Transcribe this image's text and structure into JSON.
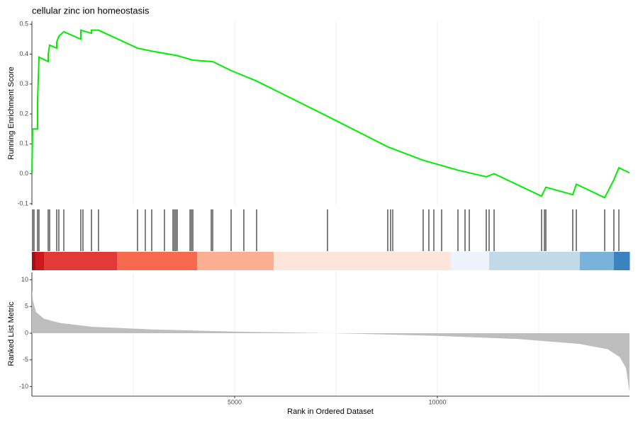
{
  "chart_data": [
    {
      "type": "line",
      "title": "cellular zinc ion homeostasis",
      "ylabel": "Running Enrichment Score",
      "color": "#00ee00",
      "x": [
        0,
        17,
        140,
        140,
        175,
        402,
        402,
        437,
        612,
        612,
        664,
        787,
        1206,
        1206,
        1469,
        1469,
        1643,
        2605,
        2955,
        3584,
        3969,
        4458,
        4913,
        5542,
        7290,
        8776,
        9650,
        9913,
        10507,
        11206,
        11399,
        12570,
        12675,
        13339,
        13427,
        14126,
        14353,
        14476,
        14738
      ],
      "values": [
        0.0,
        0.15,
        0.15,
        0.245,
        0.39,
        0.375,
        0.4,
        0.43,
        0.42,
        0.44,
        0.46,
        0.475,
        0.45,
        0.48,
        0.47,
        0.48,
        0.48,
        0.42,
        0.41,
        0.395,
        0.38,
        0.375,
        0.345,
        0.31,
        0.192,
        0.09,
        0.045,
        0.035,
        0.012,
        -0.01,
        0.0,
        -0.075,
        -0.045,
        -0.07,
        -0.035,
        -0.08,
        -0.02,
        0.02,
        0.003
      ],
      "xlim": [
        0,
        14738
      ],
      "ylim": [
        -0.105,
        0.51
      ],
      "yticks": [
        0.5,
        0.4,
        0.3,
        0.2,
        0.1,
        {
          "value": 0,
          "label": "0.0"
        },
        -0.1
      ],
      "xgrid": [
        2500,
        5000,
        7500,
        10000,
        12500
      ]
    },
    {
      "type": "rug",
      "xlim": [
        0,
        14738
      ],
      "hits": [
        17,
        52,
        140,
        175,
        402,
        437,
        612,
        664,
        787,
        1206,
        1259,
        1469,
        1643,
        2605,
        2797,
        2955,
        3269,
        3479,
        3514,
        3549,
        3584,
        3899,
        3934,
        3969,
        4423,
        4458,
        4913,
        5227,
        5542,
        7290,
        8776,
        8846,
        8899,
        9650,
        9790,
        9913,
        10105,
        10507,
        10682,
        10787,
        11206,
        11276,
        11399,
        12570,
        12640,
        12675,
        13339,
        13427,
        14126,
        14353,
        14476
      ],
      "band_edges": [
        0,
        87,
        297,
        2098,
        4073,
        5962,
        10332,
        11276,
        13514,
        14353,
        14738
      ],
      "band_colors": [
        "#a50f15",
        "#cb181d",
        "#e23a36",
        "#f6694f",
        "#fcae91",
        "#fee5d9",
        "#eef3fb",
        "#c2d9e8",
        "#79b3da",
        "#3a82c0"
      ]
    },
    {
      "type": "area",
      "xlabel": "Rank in Ordered Dataset",
      "ylabel": "Ranked List Metric",
      "color": "#bebebe",
      "x": [
        0,
        30,
        100,
        300,
        700,
        1500,
        3000,
        5000,
        7000,
        8000,
        10000,
        12000,
        13500,
        14200,
        14500,
        14650,
        14738
      ],
      "values": [
        8,
        6,
        4,
        2.7,
        1.9,
        1.2,
        0.7,
        0.3,
        0.05,
        -0.1,
        -0.5,
        -1.1,
        -2,
        -3,
        -4.5,
        -6.5,
        -11
      ],
      "xlim": [
        0,
        14738
      ],
      "ylim": [
        -11.8,
        11.4
      ],
      "yticks": [
        10,
        5,
        0,
        -5,
        -10
      ],
      "xticks": [
        5000,
        10000
      ],
      "xgrid": [
        2500,
        5000,
        7500,
        10000,
        12500
      ]
    }
  ]
}
